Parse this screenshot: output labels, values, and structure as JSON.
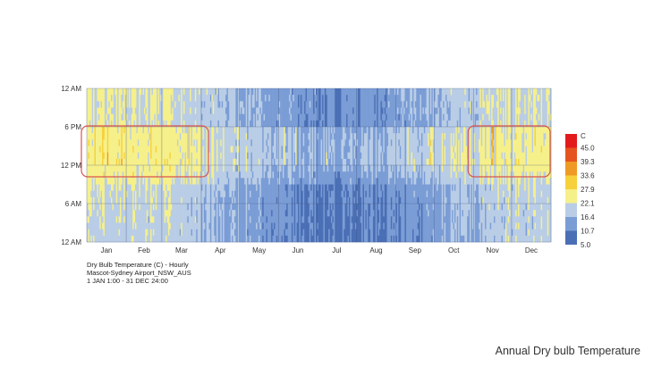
{
  "chart_data": {
    "type": "heatmap",
    "title_lines": [
      "Dry Bulb Temperature (C) - Hourly",
      "Mascot-Sydney Airport_NSW_AUS",
      "1 JAN 1:00 - 31 DEC 24:00"
    ],
    "y_ticks": [
      "12 AM",
      "6 PM",
      "12 PM",
      "6 AM",
      "12 AM"
    ],
    "x_ticks": [
      "Jan",
      "Feb",
      "Mar",
      "Apr",
      "May",
      "Jun",
      "Jul",
      "Aug",
      "Sep",
      "Oct",
      "Nov",
      "Dec"
    ],
    "legend_unit": "C",
    "legend_values": [
      "45.0",
      "39.3",
      "33.6",
      "27.9",
      "22.1",
      "16.4",
      "10.7",
      "5.0"
    ],
    "legend_range": [
      5.0,
      50.7
    ],
    "colors": {
      "scale": [
        "#4a6fb5",
        "#7b9dd6",
        "#b9cde6",
        "#f6f08a",
        "#f7d13b",
        "#ef9a24",
        "#e5541e",
        "#e31a1c"
      ],
      "highlight_box": "#d9534f",
      "grid": "#3f4f7a"
    },
    "monthly_day_mean_c": [
      26,
      26,
      25,
      22,
      19,
      17,
      16.5,
      17,
      20,
      22,
      24,
      25.5
    ],
    "monthly_night_mean_c": [
      20,
      20,
      19,
      16,
      13,
      10,
      8.5,
      9,
      12,
      15,
      18,
      19.5
    ],
    "highlights": [
      {
        "from_month": "Jan",
        "to_month": "Mar",
        "hours": "6 PM - 12 PM"
      },
      {
        "from_month": "Nov",
        "to_month": "Dec",
        "hours": "6 PM - 12 PM"
      }
    ]
  },
  "slide_caption": "Annual Dry bulb Temperature"
}
